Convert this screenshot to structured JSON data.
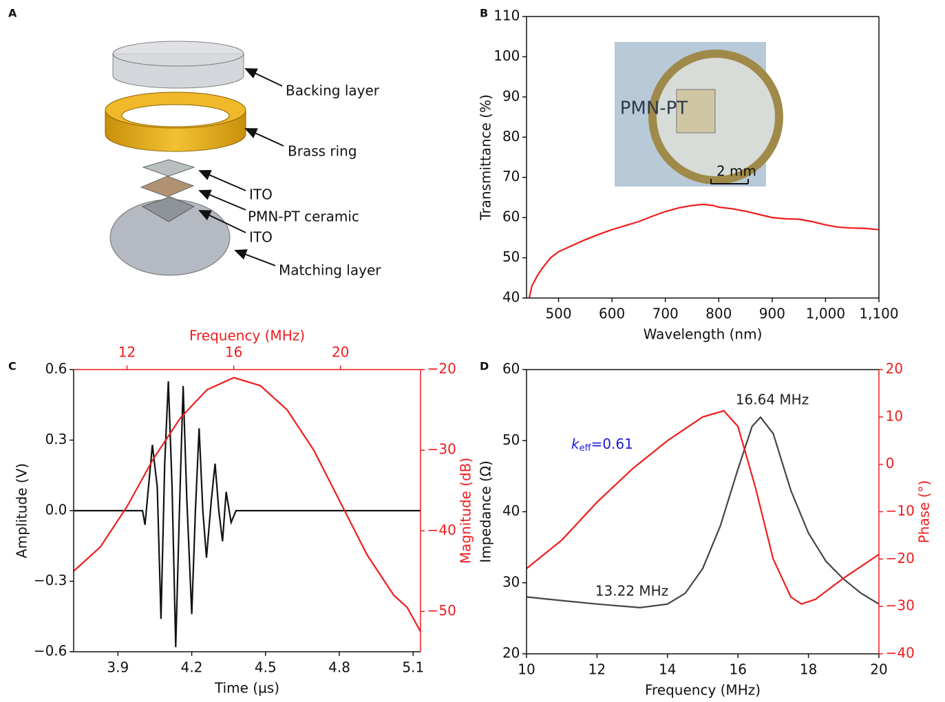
{
  "chart_data": [
    {
      "type": "diagram",
      "panel": "A",
      "labels": [
        "Backing layer",
        "Brass ring",
        "ITO",
        "PMN-PT ceramic",
        "ITO",
        "Matching layer"
      ]
    },
    {
      "type": "line",
      "panel": "B",
      "xlabel": "Wavelength (nm)",
      "ylabel": "Transmittance (%)",
      "xlim": [
        440,
        1100
      ],
      "ylim": [
        40,
        110
      ],
      "xticks": [
        500,
        600,
        700,
        800,
        900,
        {
          "value": 1000,
          "label": "1,000"
        },
        {
          "value": 1100,
          "label": "1,100"
        }
      ],
      "yticks": [
        40,
        50,
        60,
        70,
        80,
        90,
        100,
        110
      ],
      "x": [
        445,
        450,
        460,
        470,
        485,
        500,
        525,
        550,
        575,
        600,
        625,
        650,
        675,
        700,
        725,
        750,
        770,
        790,
        800,
        825,
        850,
        875,
        900,
        925,
        950,
        975,
        1000,
        1025,
        1050,
        1075,
        1100
      ],
      "series": [
        {
          "color": "#ee1c1c",
          "values": [
            40,
            43,
            45.5,
            47.5,
            50,
            51.5,
            53,
            54.5,
            55.8,
            57,
            58,
            59,
            60.3,
            61.5,
            62.4,
            63,
            63.3,
            63,
            62.6,
            62.2,
            61.6,
            60.8,
            60,
            59.7,
            59.6,
            59,
            58.2,
            57.6,
            57.4,
            57.3,
            57
          ]
        }
      ],
      "annotations": [
        "PMN-PT",
        "2 mm"
      ]
    },
    {
      "type": "line",
      "panel": "C",
      "xlabel": "Time (µs)",
      "ylabel": "Amplitude (V)",
      "x2label": "Frequency (MHz)",
      "y2label": "Magnitude (dB)",
      "xlim": [
        3.72,
        5.13
      ],
      "ylim": [
        -0.6,
        0.6
      ],
      "x2lim": [
        10,
        23
      ],
      "y2lim": [
        -55,
        -20
      ],
      "axis2_color": "#ee1c1c",
      "xticks": [
        3.9,
        4.2,
        4.5,
        4.8,
        5.1
      ],
      "yticks": [
        {
          "value": -0.6,
          "label": "−0.6"
        },
        {
          "value": -0.3,
          "label": "−0.3"
        },
        {
          "value": 0,
          "label": "0.0"
        },
        0.3,
        0.6
      ],
      "x2ticks": [
        12,
        16,
        20
      ],
      "y2ticks": [
        {
          "value": -50,
          "label": "−50"
        },
        {
          "value": -40,
          "label": "−40"
        },
        {
          "value": -30,
          "label": "−30"
        },
        {
          "value": -20,
          "label": "−20"
        }
      ],
      "series": [
        {
          "color": "#111111",
          "x": [
            3.72,
            4.0,
            4.01,
            4.04,
            4.06,
            4.075,
            4.09,
            4.105,
            4.12,
            4.135,
            4.15,
            4.165,
            4.18,
            4.2,
            4.215,
            4.23,
            4.245,
            4.26,
            4.28,
            4.295,
            4.31,
            4.325,
            4.34,
            4.36,
            4.38,
            5.13
          ],
          "values": [
            0,
            0,
            -0.06,
            0.28,
            0.1,
            -0.46,
            0.2,
            0.55,
            0.1,
            -0.58,
            0,
            0.53,
            0.05,
            -0.44,
            0,
            0.35,
            0,
            -0.2,
            0.05,
            0.2,
            0,
            -0.13,
            0.08,
            -0.05,
            0,
            0
          ]
        },
        {
          "color": "#ee1c1c",
          "axis": "y2",
          "xaxis": "x2",
          "x": [
            10,
            11,
            12,
            13,
            14,
            15,
            16,
            17,
            18,
            19,
            20,
            21,
            22,
            22.5,
            23
          ],
          "values": [
            -45,
            -42,
            -37,
            -31,
            -26,
            -22.5,
            -21,
            -22,
            -25,
            -30,
            -36.5,
            -43,
            -48,
            -49.5,
            -52.5
          ]
        }
      ]
    },
    {
      "type": "line",
      "panel": "D",
      "xlabel": "Frequency (MHz)",
      "ylabel": "Impedance (Ω)",
      "y2label": "Phase (°)",
      "xlim": [
        10,
        20
      ],
      "ylim": [
        20,
        60
      ],
      "y2lim": [
        -40,
        20
      ],
      "axis2_color": "#ee1c1c",
      "xticks": [
        10,
        12,
        14,
        16,
        18,
        20
      ],
      "yticks": [
        20,
        30,
        40,
        50,
        60
      ],
      "y2ticks": [
        {
          "value": -40,
          "label": "−40"
        },
        {
          "value": -30,
          "label": "−30"
        },
        {
          "value": -20,
          "label": "−20"
        },
        {
          "value": -10,
          "label": "−10"
        },
        0,
        10,
        20
      ],
      "series": [
        {
          "color": "#444444",
          "x": [
            10,
            11,
            12,
            13,
            13.22,
            14,
            14.5,
            15,
            15.5,
            16,
            16.4,
            16.64,
            17,
            17.5,
            18,
            18.5,
            19,
            19.5,
            20
          ],
          "values": [
            28,
            27.5,
            27,
            26.6,
            26.5,
            27,
            28.5,
            32,
            38,
            46,
            52,
            53.3,
            51,
            43,
            37,
            33,
            30.5,
            28.5,
            27
          ]
        },
        {
          "color": "#ee1c1c",
          "axis": "y2",
          "x": [
            10,
            11,
            12,
            13,
            14,
            15,
            15.6,
            16,
            16.5,
            17,
            17.5,
            17.8,
            18.2,
            19,
            20
          ],
          "values": [
            -22,
            -16,
            -8,
            -1,
            5,
            10,
            11.3,
            8,
            -5,
            -20,
            -28,
            -29.5,
            -28.5,
            -24,
            -19
          ]
        }
      ],
      "annotations": [
        "16.64 MHz",
        "13.22 MHz"
      ],
      "keff": {
        "symbol": "k",
        "subscript": "eff",
        "text": "=0.61"
      }
    }
  ]
}
